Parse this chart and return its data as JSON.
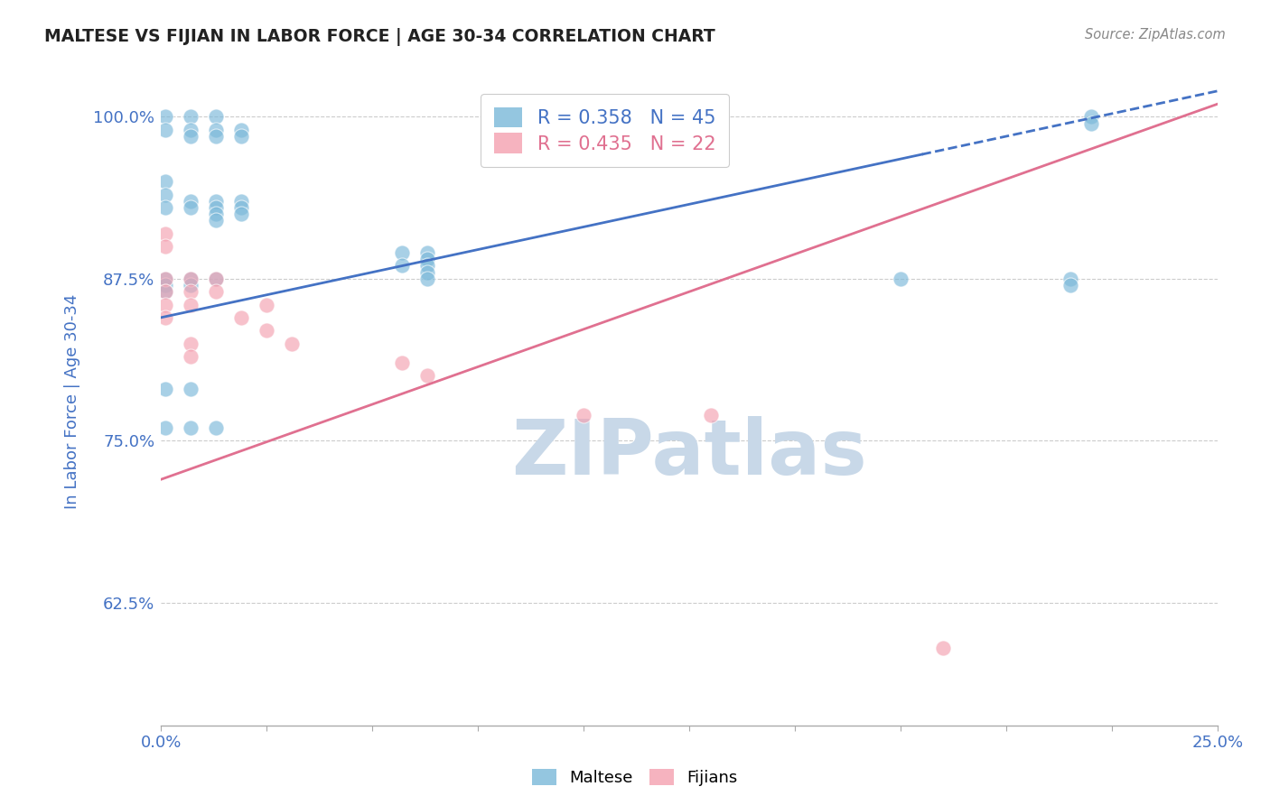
{
  "title": "MALTESE VS FIJIAN IN LABOR FORCE | AGE 30-34 CORRELATION CHART",
  "source": "Source: ZipAtlas.com",
  "ylabel_label": "In Labor Force | Age 30-34",
  "xlim": [
    0.0,
    0.25
  ],
  "ylim": [
    0.53,
    1.03
  ],
  "xticks": [
    0.0,
    0.025,
    0.05,
    0.075,
    0.1,
    0.125,
    0.15,
    0.175,
    0.2,
    0.225,
    0.25
  ],
  "xticklabels": [
    "0.0%",
    "",
    "",
    "",
    "",
    "",
    "",
    "",
    "",
    "",
    "25.0%"
  ],
  "yticks": [
    0.625,
    0.75,
    0.875,
    1.0
  ],
  "yticklabels": [
    "62.5%",
    "75.0%",
    "87.5%",
    "100.0%"
  ],
  "maltese_color": "#7ab8d9",
  "fijian_color": "#f4a0b0",
  "maltese_line_color": "#4472c4",
  "fijian_line_color": "#e07090",
  "maltese_R": 0.358,
  "maltese_N": 45,
  "fijian_R": 0.435,
  "fijian_N": 22,
  "maltese_x": [
    0.001,
    0.001,
    0.007,
    0.007,
    0.007,
    0.013,
    0.013,
    0.013,
    0.019,
    0.019,
    0.001,
    0.001,
    0.001,
    0.007,
    0.007,
    0.013,
    0.013,
    0.013,
    0.013,
    0.019,
    0.019,
    0.019,
    0.057,
    0.057,
    0.063,
    0.063,
    0.063,
    0.063,
    0.063,
    0.001,
    0.001,
    0.001,
    0.007,
    0.007,
    0.013,
    0.175,
    0.215,
    0.215,
    0.22,
    0.22,
    0.001,
    0.001,
    0.007,
    0.007,
    0.013
  ],
  "maltese_y": [
    1.0,
    0.99,
    1.0,
    0.99,
    0.985,
    1.0,
    0.99,
    0.985,
    0.99,
    0.985,
    0.95,
    0.94,
    0.93,
    0.935,
    0.93,
    0.935,
    0.93,
    0.925,
    0.92,
    0.935,
    0.93,
    0.925,
    0.895,
    0.885,
    0.895,
    0.89,
    0.885,
    0.88,
    0.875,
    0.875,
    0.87,
    0.865,
    0.875,
    0.87,
    0.875,
    0.875,
    0.875,
    0.87,
    1.0,
    0.995,
    0.79,
    0.76,
    0.79,
    0.76,
    0.76
  ],
  "fijian_x": [
    0.001,
    0.001,
    0.001,
    0.001,
    0.007,
    0.007,
    0.007,
    0.013,
    0.013,
    0.019,
    0.025,
    0.025,
    0.031,
    0.057,
    0.063,
    0.1,
    0.13,
    0.185,
    0.001,
    0.001,
    0.007,
    0.007
  ],
  "fijian_y": [
    0.875,
    0.865,
    0.855,
    0.845,
    0.875,
    0.865,
    0.855,
    0.875,
    0.865,
    0.845,
    0.855,
    0.835,
    0.825,
    0.81,
    0.8,
    0.77,
    0.77,
    0.59,
    0.91,
    0.9,
    0.825,
    0.815
  ],
  "background_color": "#ffffff",
  "grid_color": "#cccccc",
  "title_color": "#222222",
  "axis_label_color": "#4472c4",
  "tick_color": "#4472c4",
  "watermark_text": "ZIPatlas",
  "watermark_color": "#c8d8e8"
}
